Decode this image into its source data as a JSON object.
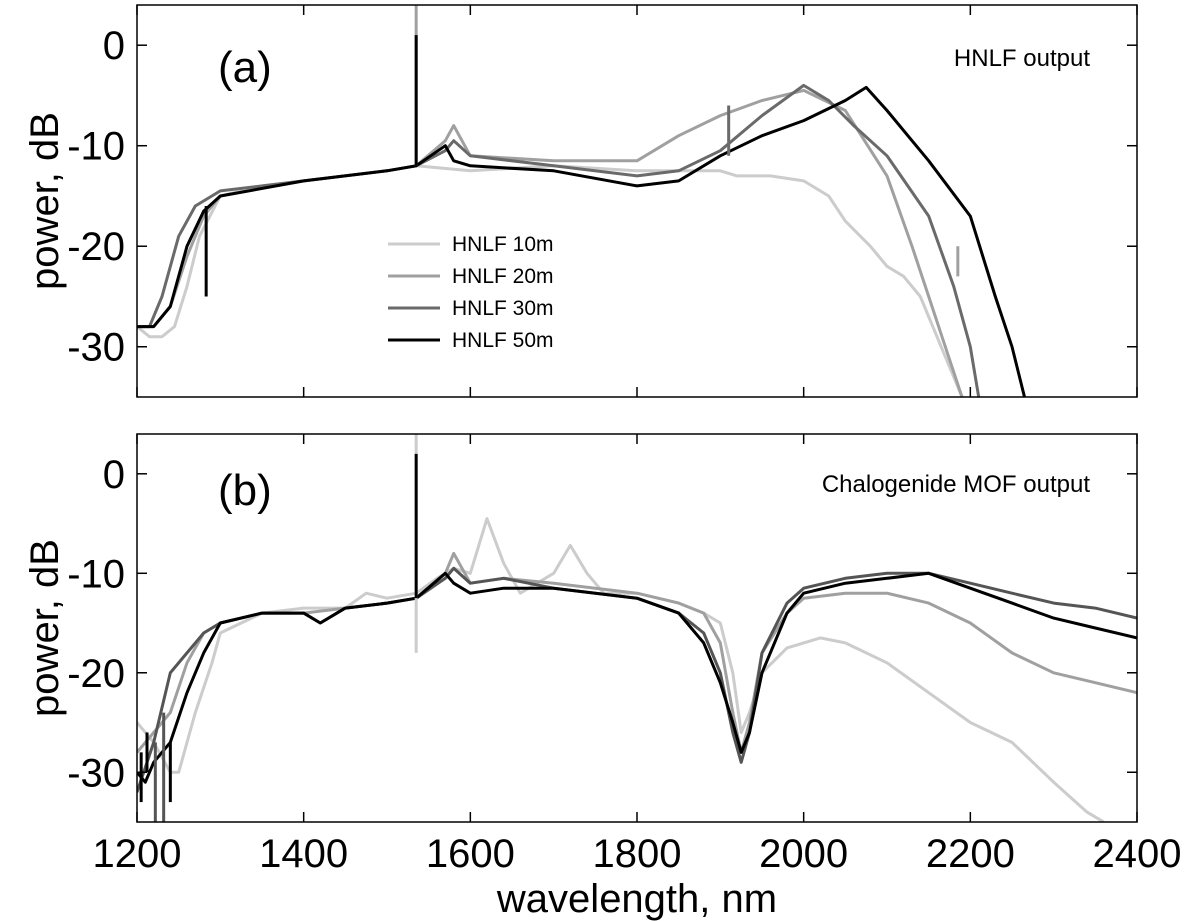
{
  "chart_data": [
    {
      "type": "line",
      "panel_label": "(a)",
      "annotation": "HNLF output",
      "xlabel": "",
      "ylabel": "power, dB",
      "xlim": [
        1200,
        2400
      ],
      "ylim": [
        -35,
        4
      ],
      "xticks": [
        1200,
        1400,
        1600,
        1800,
        2000,
        2200,
        2400
      ],
      "yticks": [
        0,
        -10,
        -20,
        -30
      ],
      "grid": false,
      "legend": {
        "placement": "center-left",
        "entries": [
          "HNLF 10m",
          "HNLF 20m",
          "HNLF 30m",
          "HNLF 50m"
        ]
      },
      "series": [
        {
          "name": "HNLF 10m",
          "color": "#cccccc",
          "x": [
            1200,
            1215,
            1230,
            1245,
            1260,
            1275,
            1300,
            1350,
            1400,
            1500,
            1535,
            1600,
            1700,
            1800,
            1850,
            1900,
            1920,
            1960,
            2000,
            2030,
            2050,
            2080,
            2100,
            2120,
            2140,
            2160,
            2180,
            2190
          ],
          "y": [
            -28,
            -29,
            -29,
            -28,
            -24,
            -19,
            -15,
            -14,
            -13.5,
            -12.5,
            -12,
            -12.5,
            -12,
            -12.5,
            -12.5,
            -12.5,
            -13,
            -13,
            -13.5,
            -15,
            -17.5,
            -20,
            -22,
            -23,
            -25,
            -29,
            -33,
            -35
          ]
        },
        {
          "name": "HNLF 20m",
          "color": "#a0a0a0",
          "x": [
            1200,
            1220,
            1240,
            1260,
            1280,
            1300,
            1400,
            1500,
            1535,
            1570,
            1580,
            1600,
            1700,
            1800,
            1850,
            1900,
            1950,
            2000,
            2050,
            2100,
            2130,
            2150,
            2170,
            2190
          ],
          "y": [
            -28,
            -28,
            -26,
            -21,
            -17,
            -15,
            -13.5,
            -12.5,
            -12,
            -9.5,
            -8,
            -11,
            -11.5,
            -11.5,
            -9,
            -7,
            -5.5,
            -4.5,
            -6.5,
            -13,
            -20,
            -25,
            -30,
            -35
          ]
        },
        {
          "name": "HNLF 30m",
          "color": "#6a6a6a",
          "x": [
            1200,
            1215,
            1230,
            1250,
            1270,
            1300,
            1400,
            1500,
            1535,
            1570,
            1580,
            1600,
            1700,
            1800,
            1850,
            1900,
            1950,
            2000,
            2030,
            2060,
            2100,
            2150,
            2180,
            2200,
            2210
          ],
          "y": [
            -28,
            -28,
            -25,
            -19,
            -16,
            -14.5,
            -13.5,
            -12.5,
            -12,
            -10.5,
            -9.5,
            -11,
            -12,
            -13,
            -12.5,
            -10.5,
            -7,
            -4,
            -5.5,
            -8,
            -11,
            -17,
            -24,
            -30,
            -35
          ]
        },
        {
          "name": "HNLF 50m",
          "color": "#000000",
          "x": [
            1200,
            1220,
            1240,
            1260,
            1280,
            1300,
            1400,
            1500,
            1535,
            1570,
            1580,
            1600,
            1700,
            1800,
            1850,
            1900,
            1950,
            2000,
            2050,
            2075,
            2100,
            2150,
            2200,
            2230,
            2250,
            2265
          ],
          "y": [
            -28,
            -28,
            -26,
            -20,
            -16.5,
            -15,
            -13.5,
            -12.5,
            -12,
            -10,
            -11.5,
            -12,
            -12.5,
            -14,
            -13.5,
            -11,
            -9,
            -7.5,
            -5.5,
            -4.2,
            -6.5,
            -11.5,
            -17,
            -25,
            -30,
            -35
          ]
        }
      ],
      "spikes": [
        {
          "series": "HNLF 20m",
          "x": 1535,
          "from": -12,
          "to": 4
        },
        {
          "series": "HNLF 50m",
          "x": 1535,
          "from": -12,
          "to": 1
        },
        {
          "series": "HNLF 50m",
          "x": 1283,
          "from": -16,
          "to": -25
        },
        {
          "series": "HNLF 30m",
          "x": 1910,
          "from": -11,
          "to": -6
        },
        {
          "series": "HNLF 20m",
          "x": 2185,
          "from": -20,
          "to": -23
        }
      ]
    },
    {
      "type": "line",
      "panel_label": "(b)",
      "annotation": "Chalogenide MOF output",
      "xlabel": "wavelength, nm",
      "ylabel": "power, dB",
      "xlim": [
        1200,
        2400
      ],
      "ylim": [
        -35,
        4
      ],
      "xticks": [
        1200,
        1400,
        1600,
        1800,
        2000,
        2200,
        2400
      ],
      "yticks": [
        0,
        -10,
        -20,
        -30
      ],
      "grid": false,
      "series": [
        {
          "name": "HNLF 10m",
          "color": "#cccccc",
          "x": [
            1200,
            1220,
            1240,
            1250,
            1270,
            1290,
            1300,
            1350,
            1400,
            1450,
            1475,
            1500,
            1535,
            1560,
            1580,
            1600,
            1620,
            1640,
            1660,
            1700,
            1720,
            1740,
            1760,
            1800,
            1850,
            1880,
            1900,
            1915,
            1925,
            1935,
            1950,
            1980,
            2000,
            2020,
            2050,
            2100,
            2150,
            2200,
            2250,
            2300,
            2340,
            2360
          ],
          "y": [
            -25,
            -27,
            -30,
            -30,
            -24,
            -19,
            -16,
            -14,
            -13.5,
            -13.5,
            -12,
            -12.5,
            -12,
            -10.5,
            -9.5,
            -10,
            -4.5,
            -9,
            -12,
            -10,
            -7.2,
            -10,
            -12,
            -12,
            -13,
            -14,
            -15,
            -20,
            -26,
            -24,
            -20,
            -17.5,
            -17,
            -16.5,
            -17,
            -19,
            -22,
            -25,
            -27,
            -31,
            -34,
            -35
          ]
        },
        {
          "name": "HNLF 20m",
          "color": "#a0a0a0",
          "x": [
            1200,
            1220,
            1240,
            1260,
            1280,
            1300,
            1350,
            1400,
            1450,
            1500,
            1535,
            1570,
            1580,
            1600,
            1640,
            1700,
            1800,
            1850,
            1880,
            1900,
            1915,
            1925,
            1935,
            1950,
            1980,
            2000,
            2050,
            2100,
            2150,
            2200,
            2250,
            2300,
            2350,
            2400
          ],
          "y": [
            -28,
            -26,
            -24,
            -19,
            -16,
            -15,
            -14,
            -14,
            -13.5,
            -13,
            -12.5,
            -10,
            -8,
            -11,
            -10.5,
            -11,
            -12,
            -13,
            -14,
            -17,
            -24,
            -28,
            -25,
            -18,
            -14,
            -12.5,
            -12,
            -12,
            -13,
            -15,
            -18,
            -20,
            -21,
            -22
          ]
        },
        {
          "name": "HNLF 30m",
          "color": "#555555",
          "x": [
            1200,
            1220,
            1240,
            1260,
            1280,
            1300,
            1350,
            1400,
            1420,
            1450,
            1500,
            1535,
            1570,
            1580,
            1600,
            1640,
            1700,
            1800,
            1850,
            1880,
            1900,
            1915,
            1925,
            1935,
            1950,
            1980,
            2000,
            2050,
            2100,
            2150,
            2200,
            2250,
            2300,
            2350,
            2400
          ],
          "y": [
            -32,
            -27,
            -20,
            -18,
            -16,
            -15,
            -14,
            -14,
            -15,
            -13.5,
            -13,
            -12.5,
            -10.5,
            -9.5,
            -11,
            -10.5,
            -11.5,
            -12.5,
            -14,
            -16,
            -20,
            -26,
            -29,
            -26,
            -18,
            -13,
            -11.5,
            -10.5,
            -10,
            -10,
            -11,
            -12,
            -13,
            -13.5,
            -14.5
          ]
        },
        {
          "name": "HNLF 50m",
          "color": "#000000",
          "x": [
            1200,
            1210,
            1220,
            1240,
            1260,
            1280,
            1300,
            1350,
            1400,
            1420,
            1450,
            1500,
            1535,
            1570,
            1580,
            1600,
            1640,
            1700,
            1800,
            1850,
            1880,
            1900,
            1915,
            1925,
            1935,
            1950,
            1980,
            2000,
            2050,
            2100,
            2150,
            2200,
            2250,
            2300,
            2350,
            2400
          ],
          "y": [
            -30,
            -31,
            -29,
            -27,
            -22,
            -18,
            -15,
            -14,
            -14,
            -15,
            -13.5,
            -13,
            -12.5,
            -10,
            -11,
            -12,
            -11.5,
            -11.5,
            -12.5,
            -14,
            -17,
            -21,
            -25,
            -28,
            -26,
            -20,
            -14,
            -12,
            -11,
            -10.5,
            -10,
            -11.5,
            -13,
            -14.5,
            -15.5,
            -16.5
          ]
        }
      ],
      "spikes": [
        {
          "series": "HNLF 10m",
          "x": 1535,
          "from": 4,
          "to": -18
        },
        {
          "series": "HNLF 50m",
          "x": 1535,
          "from": -12.5,
          "to": 2
        },
        {
          "series": "HNLF 30m",
          "x": 1222,
          "from": -27,
          "to": -35
        },
        {
          "series": "HNLF 50m",
          "x": 1205,
          "from": -28,
          "to": -33
        },
        {
          "series": "HNLF 50m",
          "x": 1212,
          "from": -30,
          "to": -26
        },
        {
          "series": "HNLF 30m",
          "x": 1232,
          "from": -24,
          "to": -35
        },
        {
          "series": "HNLF 50m",
          "x": 1240,
          "from": -27,
          "to": -33
        }
      ]
    }
  ]
}
